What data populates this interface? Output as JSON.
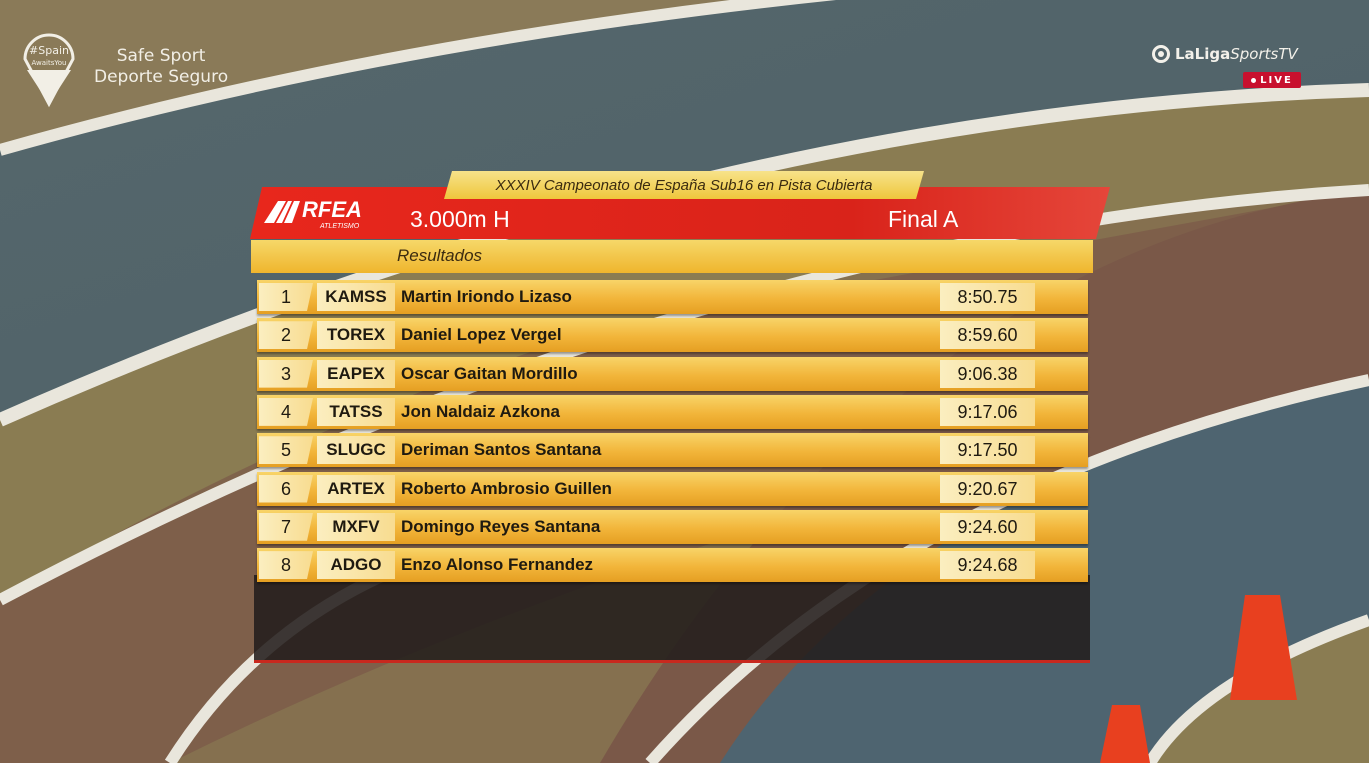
{
  "watermark": {
    "logo_text_1": "#Spain",
    "logo_text_2": "AwaitsYou",
    "line1": "Safe Sport",
    "line2": "Deporte Seguro"
  },
  "broadcaster": {
    "brand_bold": "LaLiga",
    "brand_light": "SportsTV",
    "live_label": "LIVE",
    "live_color": "#c8102e"
  },
  "scoreboard": {
    "championship": "XXXIV Campeonato de España Sub16 en Pista Cubierta",
    "federation_logo": "RFEA ATLETISMO",
    "event": "3.000m H",
    "round": "Final A",
    "section": "Resultados",
    "accent_red": "#e8271c",
    "accent_yellow": "#f2b53a",
    "results": [
      {
        "rank": "1",
        "club": "KAMSS",
        "name": "Martin Iriondo Lizaso",
        "time": "8:50.75"
      },
      {
        "rank": "2",
        "club": "TOREX",
        "name": "Daniel Lopez Vergel",
        "time": "8:59.60"
      },
      {
        "rank": "3",
        "club": "EAPEX",
        "name": "Oscar Gaitan Mordillo",
        "time": "9:06.38"
      },
      {
        "rank": "4",
        "club": "TATSS",
        "name": "Jon Naldaiz Azkona",
        "time": "9:17.06"
      },
      {
        "rank": "5",
        "club": "SLUGC",
        "name": "Deriman Santos Santana",
        "time": "9:17.50"
      },
      {
        "rank": "6",
        "club": "ARTEX",
        "name": "Roberto Ambrosio Guillen",
        "time": "9:20.67"
      },
      {
        "rank": "7",
        "club": "MXFV",
        "name": "Domingo Reyes Santana",
        "time": "9:24.60"
      },
      {
        "rank": "8",
        "club": "ADGO",
        "name": "Enzo Alonso Fernandez",
        "time": "9:24.68"
      }
    ]
  }
}
